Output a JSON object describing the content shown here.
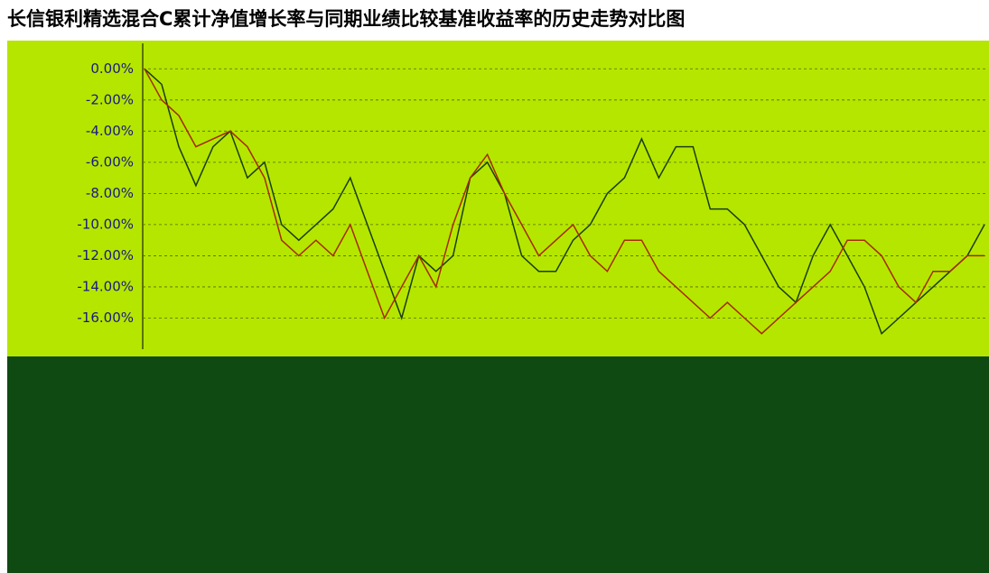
{
  "chart_data": {
    "type": "line",
    "title": "长信银利精选混合C累计净值增长率与同期业绩比较基准收益率的历史走势对比图",
    "series": [
      {
        "color": "#1a3d0a",
        "values": [
          0,
          -1,
          -5,
          -7.5,
          -5,
          -4,
          -7,
          -6,
          -10,
          -11,
          -10,
          -9,
          -7,
          -10,
          -13,
          -16,
          -12,
          -13,
          -12,
          -7,
          -6,
          -8,
          -12,
          -13,
          -13,
          -11,
          -10,
          -8,
          -7,
          -4.5,
          -7,
          -5,
          -5,
          -9,
          -9,
          -10,
          -12,
          -14,
          -15,
          -12,
          -10,
          -12,
          -14,
          -17,
          -16,
          -15,
          -14,
          -13,
          -12,
          -10
        ]
      },
      {
        "color": "#a52a00",
        "values": [
          0,
          -2,
          -3,
          -5,
          -4.5,
          -4,
          -5,
          -7,
          -11,
          -12,
          -11,
          -12,
          -10,
          -13,
          -16,
          -14,
          -12,
          -14,
          -10,
          -7,
          -5.5,
          -8,
          -10,
          -12,
          -11,
          -10,
          -12,
          -13,
          -11,
          -11,
          -13,
          -14,
          -15,
          -16,
          -15,
          -16,
          -17,
          -16,
          -15,
          -14,
          -13,
          -11,
          -11,
          -12,
          -14,
          -15,
          -13,
          -13,
          -12,
          -12
        ]
      }
    ],
    "ylim": [
      1,
      -18
    ],
    "yticks": [
      {
        "value": 0,
        "label": "0.00%"
      },
      {
        "value": -2,
        "label": "-2.00%"
      },
      {
        "value": -4,
        "label": "-4.00%"
      },
      {
        "value": -6,
        "label": "-6.00%"
      },
      {
        "value": -8,
        "label": "-8.00%"
      },
      {
        "value": -10,
        "label": "-10.00%"
      },
      {
        "value": -12,
        "label": "-12.00%"
      },
      {
        "value": -14,
        "label": "-14.00%"
      },
      {
        "value": -16,
        "label": "-16.00%"
      }
    ],
    "grid": true
  }
}
